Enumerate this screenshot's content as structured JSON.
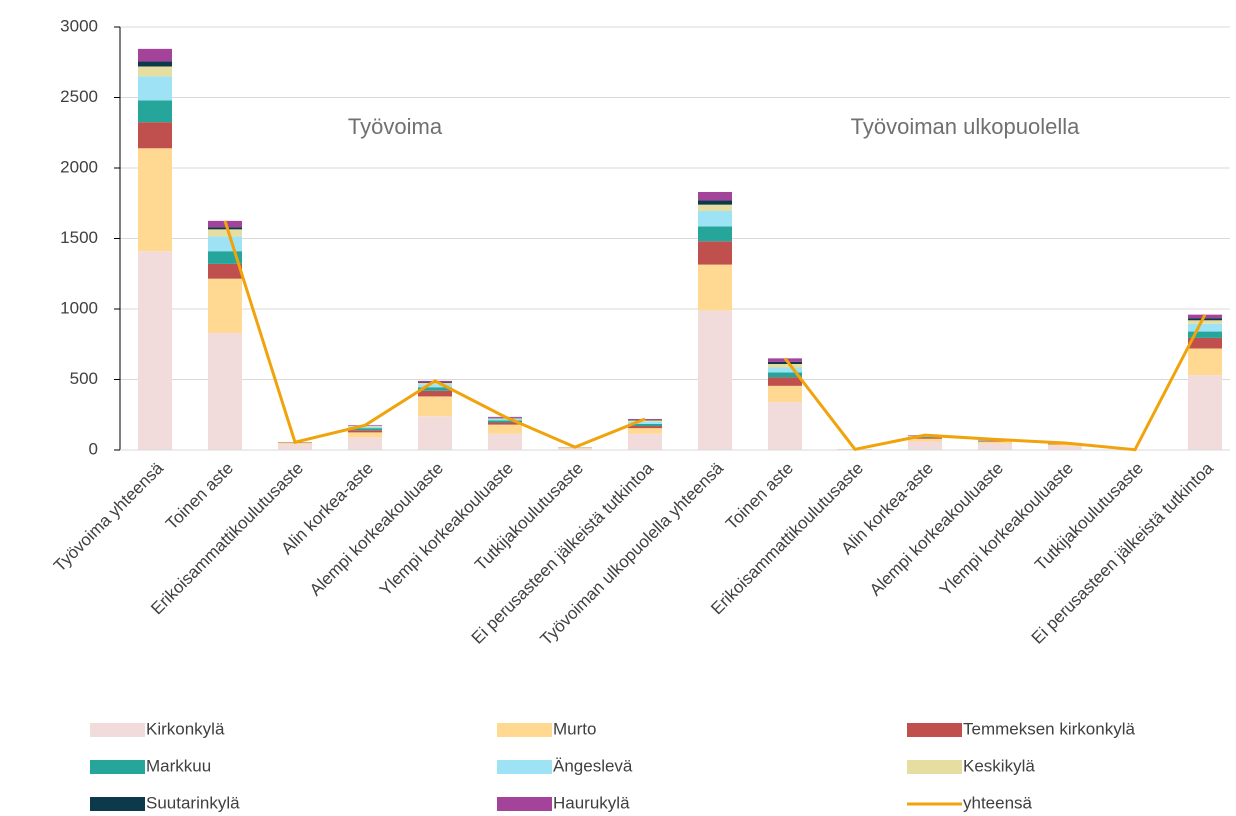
{
  "chart_data": {
    "type": "bar",
    "stacked": true,
    "annotations": [
      "Työvoima",
      "Työvoiman ulkopuolella"
    ],
    "categories": [
      "Työvoima yhteensä",
      "Toinen aste",
      "Erikoisammattikoulutusaste",
      "Alin korkea-aste",
      "Alempi korkeakouluaste",
      "Ylempi korkeakouluaste",
      "Tutkijakoulutusaste",
      "Ei perusasteen jälkeistä tutkintoa",
      "Työvoiman ulkopuolella yhteensä",
      "Toinen aste",
      "Erikoisammattikoulutusaste",
      "Alin korkea-aste",
      "Alempi korkeakouluaste",
      "Ylempi korkeakouluaste",
      "Tutkijakoulutusaste",
      "Ei perusasteen jälkeistä tutkintoa"
    ],
    "series": [
      {
        "name": "Kirkonkylä",
        "color": "#f2dcdb",
        "values": [
          1410,
          830,
          40,
          90,
          240,
          115,
          12,
          115,
          990,
          340,
          3,
          60,
          45,
          30,
          1,
          530
        ]
      },
      {
        "name": "Murto",
        "color": "#ffd991",
        "values": [
          730,
          385,
          10,
          35,
          140,
          65,
          5,
          40,
          325,
          115,
          1,
          20,
          15,
          10,
          1,
          190
        ]
      },
      {
        "name": "Temmeksen kirkonkylä",
        "color": "#c0504d",
        "values": [
          185,
          105,
          3,
          15,
          40,
          15,
          1,
          15,
          165,
          60,
          1,
          8,
          5,
          4,
          0,
          75
        ]
      },
      {
        "name": "Markkuu",
        "color": "#26a69a",
        "values": [
          155,
          90,
          1,
          15,
          25,
          15,
          1,
          15,
          105,
          35,
          0,
          5,
          4,
          2,
          0,
          45
        ]
      },
      {
        "name": "Ängeslevä",
        "color": "#9ee3f5",
        "values": [
          170,
          105,
          1,
          10,
          20,
          10,
          1,
          15,
          110,
          35,
          0,
          5,
          3,
          2,
          0,
          55
        ]
      },
      {
        "name": "Keskikylä",
        "color": "#e6dda0",
        "values": [
          70,
          50,
          0,
          5,
          10,
          5,
          0,
          10,
          45,
          25,
          0,
          3,
          2,
          1,
          0,
          25
        ]
      },
      {
        "name": "Suutarinkylä",
        "color": "#0d3a4a",
        "values": [
          35,
          15,
          0,
          0,
          5,
          3,
          0,
          5,
          30,
          15,
          0,
          1,
          0,
          0,
          0,
          15
        ]
      },
      {
        "name": "Haurukylä",
        "color": "#a3449a",
        "values": [
          90,
          45,
          0,
          5,
          10,
          7,
          0,
          5,
          60,
          25,
          0,
          3,
          1,
          1,
          0,
          25
        ]
      },
      {
        "name": "yhteensä",
        "color": "#f0a30a",
        "type": "line",
        "values": [
          null,
          1625,
          55,
          175,
          490,
          235,
          20,
          220,
          null,
          650,
          5,
          105,
          75,
          50,
          2,
          960
        ]
      }
    ],
    "ylim": [
      0,
      3000
    ],
    "yticks": [
      0,
      500,
      1000,
      1500,
      2000,
      2500,
      3000
    ],
    "grid": true,
    "legend": "bottom"
  }
}
